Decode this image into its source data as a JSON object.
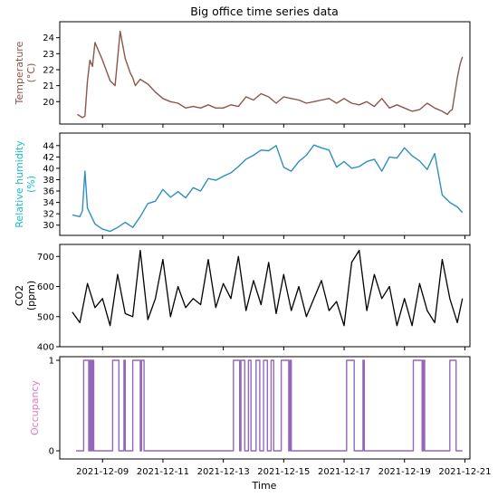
{
  "chart_data": {
    "type": "line",
    "title": "Big office time series data",
    "xlabel": "Time",
    "x_ticks": [
      "2021-12-09",
      "2021-12-11",
      "2021-12-13",
      "2021-12-15",
      "2021-12-17",
      "2021-12-19",
      "2021-12-21"
    ],
    "xlim": [
      "2021-12-07 14:00",
      "2021-12-21 04:00"
    ],
    "panels": [
      {
        "name": "temperature",
        "ylabel": "Temperature\n(°C)",
        "ylabel_color": "#8c564b",
        "line_color": "#8c564b",
        "ylim": [
          18.6,
          25.0
        ],
        "y_ticks": [
          "20",
          "21",
          "22",
          "23",
          "24"
        ],
        "y_tick_values": [
          20,
          21,
          22,
          23,
          24
        ],
        "x": [
          "2021-12-08 04:00",
          "2021-12-08 08:00",
          "2021-12-08 10:00",
          "2021-12-08 12:00",
          "2021-12-08 14:00",
          "2021-12-08 16:00",
          "2021-12-08 18:00",
          "2021-12-09 00:00",
          "2021-12-09 06:00",
          "2021-12-09 10:00",
          "2021-12-09 14:00",
          "2021-12-09 18:00",
          "2021-12-09 22:00",
          "2021-12-10 00:00",
          "2021-12-10 02:00",
          "2021-12-10 06:00",
          "2021-12-10 12:00",
          "2021-12-10 18:00",
          "2021-12-11 00:00",
          "2021-12-11 06:00",
          "2021-12-11 12:00",
          "2021-12-11 18:00",
          "2021-12-12 00:00",
          "2021-12-12 06:00",
          "2021-12-12 12:00",
          "2021-12-12 18:00",
          "2021-12-13 00:00",
          "2021-12-13 06:00",
          "2021-12-13 12:00",
          "2021-12-13 18:00",
          "2021-12-14 00:00",
          "2021-12-14 06:00",
          "2021-12-14 12:00",
          "2021-12-14 18:00",
          "2021-12-15 00:00",
          "2021-12-15 06:00",
          "2021-12-15 12:00",
          "2021-12-15 18:00",
          "2021-12-16 00:00",
          "2021-12-16 06:00",
          "2021-12-16 12:00",
          "2021-12-16 18:00",
          "2021-12-17 00:00",
          "2021-12-17 06:00",
          "2021-12-17 12:00",
          "2021-12-17 18:00",
          "2021-12-18 00:00",
          "2021-12-18 06:00",
          "2021-12-18 12:00",
          "2021-12-18 18:00",
          "2021-12-19 00:00",
          "2021-12-19 06:00",
          "2021-12-19 12:00",
          "2021-12-19 18:00",
          "2021-12-20 00:00",
          "2021-12-20 06:00",
          "2021-12-20 10:00",
          "2021-12-20 12:00",
          "2021-12-20 14:00",
          "2021-12-20 18:00",
          "2021-12-20 20:00",
          "2021-12-20 22:00"
        ],
        "y": [
          19.2,
          19.0,
          19.1,
          21.3,
          22.6,
          22.2,
          23.7,
          22.6,
          21.3,
          21.0,
          24.4,
          22.7,
          21.8,
          21.5,
          21.0,
          21.4,
          21.1,
          20.6,
          20.2,
          20.0,
          19.9,
          19.6,
          19.7,
          19.6,
          19.8,
          19.6,
          19.6,
          19.8,
          19.7,
          20.3,
          20.1,
          20.5,
          20.3,
          19.9,
          20.3,
          20.2,
          20.1,
          19.9,
          20.0,
          20.1,
          20.2,
          19.9,
          20.2,
          19.9,
          19.8,
          20.0,
          19.7,
          20.2,
          19.6,
          19.8,
          19.6,
          19.4,
          19.5,
          19.9,
          19.6,
          19.4,
          19.2,
          19.4,
          19.5,
          21.5,
          22.3,
          22.8
        ]
      },
      {
        "name": "relative-humidity",
        "ylabel": "Relative humidity\n(%)",
        "ylabel_color": "#17becf",
        "line_color": "#2f8fbf",
        "ylim": [
          28.2,
          46.2
        ],
        "y_ticks": [
          "30",
          "32",
          "34",
          "36",
          "38",
          "40",
          "42",
          "44"
        ],
        "y_tick_values": [
          30,
          32,
          34,
          36,
          38,
          40,
          42,
          44
        ],
        "x": [
          "2021-12-08 00:00",
          "2021-12-08 06:00",
          "2021-12-08 08:00",
          "2021-12-08 10:00",
          "2021-12-08 12:00",
          "2021-12-08 18:00",
          "2021-12-09 00:00",
          "2021-12-09 06:00",
          "2021-12-09 12:00",
          "2021-12-09 18:00",
          "2021-12-10 00:00",
          "2021-12-10 06:00",
          "2021-12-10 12:00",
          "2021-12-10 18:00",
          "2021-12-11 00:00",
          "2021-12-11 06:00",
          "2021-12-11 12:00",
          "2021-12-11 18:00",
          "2021-12-12 00:00",
          "2021-12-12 06:00",
          "2021-12-12 12:00",
          "2021-12-12 18:00",
          "2021-12-13 00:00",
          "2021-12-13 06:00",
          "2021-12-13 12:00",
          "2021-12-13 18:00",
          "2021-12-14 00:00",
          "2021-12-14 06:00",
          "2021-12-14 12:00",
          "2021-12-14 18:00",
          "2021-12-15 00:00",
          "2021-12-15 06:00",
          "2021-12-15 12:00",
          "2021-12-15 18:00",
          "2021-12-16 00:00",
          "2021-12-16 06:00",
          "2021-12-16 12:00",
          "2021-12-16 18:00",
          "2021-12-17 00:00",
          "2021-12-17 06:00",
          "2021-12-17 12:00",
          "2021-12-17 18:00",
          "2021-12-18 00:00",
          "2021-12-18 06:00",
          "2021-12-18 12:00",
          "2021-12-18 18:00",
          "2021-12-19 00:00",
          "2021-12-19 06:00",
          "2021-12-19 12:00",
          "2021-12-19 18:00",
          "2021-12-20 00:00",
          "2021-12-20 06:00",
          "2021-12-20 12:00",
          "2021-12-20 18:00",
          "2021-12-20 22:00"
        ],
        "y": [
          31.8,
          31.5,
          32.5,
          39.5,
          33.0,
          30.2,
          29.3,
          28.9,
          29.6,
          30.5,
          29.6,
          31.5,
          33.8,
          34.2,
          36.3,
          34.9,
          35.9,
          34.8,
          36.6,
          36.0,
          38.2,
          37.9,
          38.6,
          39.2,
          40.3,
          41.6,
          42.3,
          43.2,
          43.1,
          44.0,
          40.2,
          39.5,
          41.2,
          42.3,
          44.1,
          43.6,
          43.2,
          40.2,
          41.2,
          40.0,
          40.3,
          41.2,
          41.6,
          39.5,
          42.0,
          41.8,
          43.6,
          42.2,
          41.3,
          39.8,
          42.6,
          35.3,
          34.0,
          33.2,
          32.2
        ]
      },
      {
        "name": "co2",
        "ylabel": "CO2\n(ppm)",
        "ylabel_color": "#000000",
        "line_color": "#000000",
        "ylim": [
          400,
          740
        ],
        "y_ticks": [
          "400",
          "500",
          "600",
          "700"
        ],
        "y_tick_values": [
          400,
          500,
          600,
          700
        ],
        "x": [
          "2021-12-08 00:00",
          "2021-12-08 06:00",
          "2021-12-08 12:00",
          "2021-12-08 18:00",
          "2021-12-09 00:00",
          "2021-12-09 06:00",
          "2021-12-09 12:00",
          "2021-12-09 18:00",
          "2021-12-10 00:00",
          "2021-12-10 06:00",
          "2021-12-10 12:00",
          "2021-12-10 18:00",
          "2021-12-11 00:00",
          "2021-12-11 06:00",
          "2021-12-11 12:00",
          "2021-12-11 18:00",
          "2021-12-12 00:00",
          "2021-12-12 06:00",
          "2021-12-12 12:00",
          "2021-12-12 18:00",
          "2021-12-13 00:00",
          "2021-12-13 06:00",
          "2021-12-13 12:00",
          "2021-12-13 18:00",
          "2021-12-14 00:00",
          "2021-12-14 06:00",
          "2021-12-14 12:00",
          "2021-12-14 18:00",
          "2021-12-15 00:00",
          "2021-12-15 06:00",
          "2021-12-15 12:00",
          "2021-12-15 18:00",
          "2021-12-16 00:00",
          "2021-12-16 06:00",
          "2021-12-16 12:00",
          "2021-12-16 18:00",
          "2021-12-17 00:00",
          "2021-12-17 06:00",
          "2021-12-17 12:00",
          "2021-12-17 18:00",
          "2021-12-18 00:00",
          "2021-12-18 06:00",
          "2021-12-18 12:00",
          "2021-12-18 18:00",
          "2021-12-19 00:00",
          "2021-12-19 06:00",
          "2021-12-19 12:00",
          "2021-12-19 18:00",
          "2021-12-20 00:00",
          "2021-12-20 06:00",
          "2021-12-20 12:00",
          "2021-12-20 18:00",
          "2021-12-20 22:00"
        ],
        "y": [
          515,
          480,
          610,
          530,
          560,
          470,
          640,
          510,
          500,
          720,
          490,
          560,
          690,
          500,
          600,
          530,
          560,
          540,
          690,
          530,
          610,
          560,
          700,
          520,
          620,
          540,
          680,
          510,
          640,
          520,
          600,
          500,
          560,
          620,
          520,
          550,
          470,
          680,
          720,
          520,
          640,
          560,
          600,
          470,
          560,
          470,
          610,
          520,
          480,
          690,
          560,
          480,
          560
        ]
      },
      {
        "name": "occupancy",
        "ylabel": "Occupancy",
        "ylabel_color": "#e377c2",
        "line_color": "#9467bd",
        "ylim": [
          -0.09,
          1.04
        ],
        "y_ticks": [
          "0",
          "1"
        ],
        "y_tick_values": [
          0,
          1
        ],
        "occupied_intervals": [
          [
            "2021-12-08 09:00",
            "2021-12-08 13:00"
          ],
          [
            "2021-12-08 14:00",
            "2021-12-08 15:00"
          ],
          [
            "2021-12-08 16:00",
            "2021-12-08 17:00"
          ],
          [
            "2021-12-09 08:00",
            "2021-12-09 13:00"
          ],
          [
            "2021-12-09 17:00",
            "2021-12-09 18:00"
          ],
          [
            "2021-12-10 00:00",
            "2021-12-10 06:00"
          ],
          [
            "2021-12-10 07:00",
            "2021-12-10 09:00"
          ],
          [
            "2021-12-13 08:00",
            "2021-12-13 13:00"
          ],
          [
            "2021-12-13 14:00",
            "2021-12-13 17:00"
          ],
          [
            "2021-12-13 20:00",
            "2021-12-13 22:00"
          ],
          [
            "2021-12-14 02:00",
            "2021-12-14 05:00"
          ],
          [
            "2021-12-14 08:00",
            "2021-12-14 11:00"
          ],
          [
            "2021-12-14 14:00",
            "2021-12-14 16:00"
          ],
          [
            "2021-12-14 22:00",
            "2021-12-15 04:00"
          ],
          [
            "2021-12-15 05:00",
            "2021-12-15 06:00"
          ],
          [
            "2021-12-17 02:00",
            "2021-12-17 08:00"
          ],
          [
            "2021-12-17 15:00",
            "2021-12-17 16:00"
          ],
          [
            "2021-12-19 07:00",
            "2021-12-19 14:00"
          ],
          [
            "2021-12-19 15:00",
            "2021-12-19 16:00"
          ],
          [
            "2021-12-20 12:00",
            "2021-12-20 17:00"
          ]
        ]
      }
    ]
  }
}
